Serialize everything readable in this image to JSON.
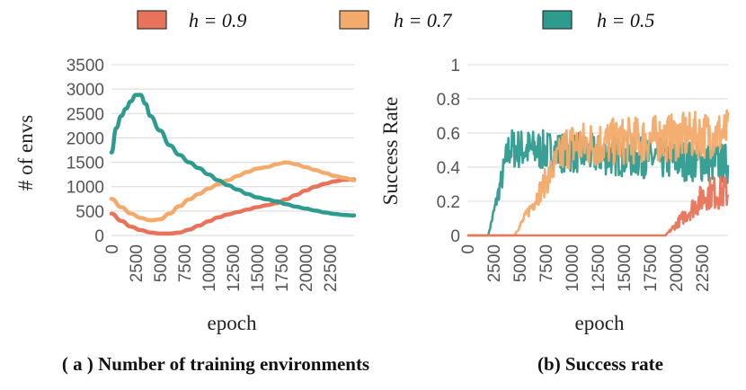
{
  "legend": [
    {
      "label": "h = 0.9",
      "color": "#E8735A"
    },
    {
      "label": "h = 0.7",
      "color": "#F4AA6A"
    },
    {
      "label": "h = 0.5",
      "color": "#2E9B8F"
    }
  ],
  "chart_data": [
    {
      "type": "line",
      "caption": "( a ) Number of training environments",
      "xlabel": "epoch",
      "ylabel": "# of envs",
      "xlim": [
        0,
        25000
      ],
      "ylim": [
        0,
        3500
      ],
      "xticks": [
        "0",
        "2500",
        "5000",
        "7500",
        "10000",
        "12500",
        "15000",
        "17500",
        "20000",
        "22500"
      ],
      "yticks": [
        "0",
        "500",
        "1000",
        "1500",
        "2000",
        "2500",
        "3000",
        "3500"
      ],
      "grid": true,
      "series": [
        {
          "name": "h = 0.9",
          "color": "#E8735A",
          "x": [
            0,
            1000,
            2000,
            3000,
            4000,
            5000,
            6000,
            7000,
            8000,
            9000,
            10000,
            11000,
            12000,
            13000,
            14000,
            15000,
            16000,
            17000,
            18000,
            19000,
            20000,
            21000,
            22000,
            23000,
            24000,
            25000
          ],
          "y": [
            450,
            300,
            180,
            110,
            60,
            40,
            40,
            60,
            120,
            200,
            290,
            370,
            430,
            480,
            530,
            580,
            620,
            660,
            740,
            830,
            920,
            1000,
            1060,
            1110,
            1140,
            1150
          ]
        },
        {
          "name": "h = 0.7",
          "color": "#F4AA6A",
          "x": [
            0,
            1000,
            2000,
            3000,
            4000,
            5000,
            6000,
            7000,
            8000,
            9000,
            10000,
            11000,
            12000,
            13000,
            14000,
            15000,
            16000,
            17000,
            18000,
            19000,
            20000,
            21000,
            22000,
            23000,
            24000,
            25000
          ],
          "y": [
            750,
            580,
            450,
            360,
            310,
            330,
            450,
            600,
            740,
            850,
            960,
            1050,
            1130,
            1220,
            1300,
            1370,
            1400,
            1460,
            1500,
            1460,
            1400,
            1340,
            1280,
            1220,
            1180,
            1130
          ]
        },
        {
          "name": "h = 0.5",
          "color": "#2E9B8F",
          "x": [
            0,
            500,
            1000,
            1500,
            2000,
            2500,
            3000,
            3500,
            4000,
            5000,
            6000,
            7000,
            8000,
            9000,
            10000,
            11000,
            12000,
            13000,
            14000,
            15000,
            16000,
            17000,
            18000,
            19000,
            20000,
            21000,
            22000,
            23000,
            24000,
            25000
          ],
          "y": [
            1700,
            2200,
            2450,
            2600,
            2750,
            2880,
            2880,
            2700,
            2450,
            2150,
            1850,
            1650,
            1500,
            1380,
            1250,
            1130,
            1030,
            940,
            850,
            780,
            740,
            700,
            640,
            590,
            550,
            510,
            470,
            440,
            420,
            410
          ]
        }
      ]
    },
    {
      "type": "line",
      "caption": "(b) Success rate",
      "xlabel": "epoch",
      "ylabel": "Success Rate",
      "xlim": [
        0,
        25000
      ],
      "ylim": [
        0,
        1
      ],
      "xticks": [
        "0",
        "2500",
        "5000",
        "7500",
        "10000",
        "12500",
        "15000",
        "17500",
        "20000",
        "22500"
      ],
      "yticks": [
        "0",
        "0.2",
        "0.4",
        "0.6",
        "0.8",
        "1"
      ],
      "grid": true,
      "series": [
        {
          "name": "h = 0.5",
          "color": "#2E9B8F",
          "start": 2000,
          "ramp": 2000,
          "mean": 0.52,
          "noise": 0.12,
          "decline": 0.1
        },
        {
          "name": "h = 0.7",
          "color": "#F4AA6A",
          "start": 4500,
          "ramp": 5000,
          "mean": 0.5,
          "noise": 0.14,
          "decline": -0.1
        },
        {
          "name": "h = 0.9",
          "color": "#E8735A",
          "start": 19000,
          "ramp": 4000,
          "mean": 0.25,
          "noise": 0.1,
          "decline": 0
        }
      ]
    }
  ]
}
